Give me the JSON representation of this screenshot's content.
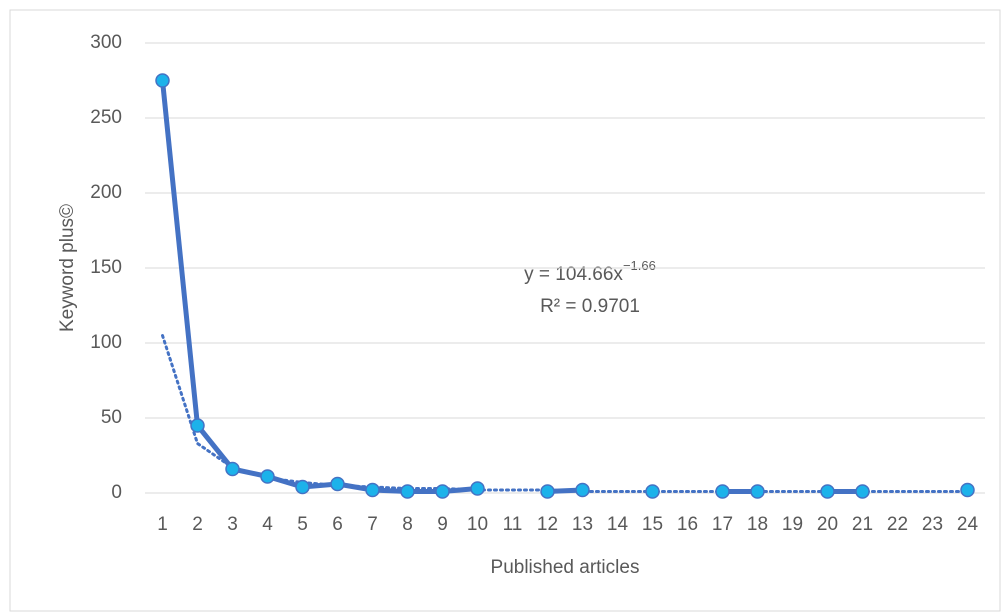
{
  "chart_data": {
    "type": "line",
    "y_axis_label": "Keyword plus©",
    "x_axis_label": "Published articles",
    "categories": [
      "1",
      "2",
      "3",
      "4",
      "5",
      "6",
      "7",
      "8",
      "9",
      "10",
      "11",
      "12",
      "13",
      "14",
      "15",
      "16",
      "17",
      "18",
      "19",
      "20",
      "21",
      "22",
      "23",
      "24"
    ],
    "series": [
      {
        "color": "#4472c4",
        "marker_color": "#1cb2ea",
        "values": [
          275,
          45,
          16,
          11,
          4,
          6,
          2,
          1,
          1,
          3,
          null,
          1,
          2,
          null,
          1,
          null,
          1,
          1,
          null,
          1,
          1,
          null,
          null,
          2
        ]
      }
    ],
    "trendline": {
      "color": "#4472c4",
      "values": [
        105,
        33,
        17,
        10,
        7,
        5,
        4,
        3,
        3,
        2,
        2,
        2,
        1,
        1,
        1,
        1,
        1,
        1,
        1,
        1,
        1,
        1,
        1,
        1
      ],
      "equation": "y = 104.66x",
      "exponent": "−1.66",
      "r_squared": "R² = 0.9701"
    },
    "ylim": [
      0,
      300
    ],
    "yticks": [
      0,
      50,
      100,
      150,
      200,
      250,
      300
    ],
    "grid": true
  }
}
